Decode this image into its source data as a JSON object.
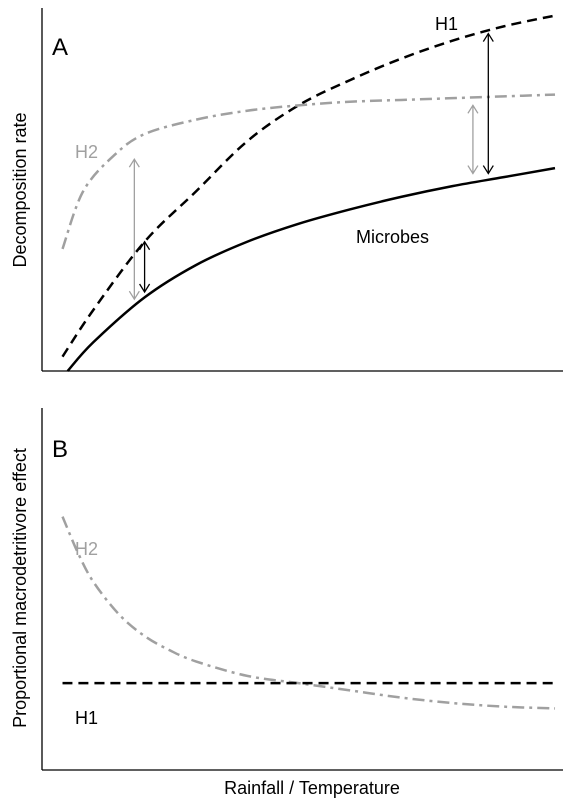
{
  "xlabel_shared": "Rainfall / Temperature",
  "colors": {
    "axis": "#000000",
    "h1": "#000000",
    "h2": "#a0a0a0",
    "microbes": "#000000"
  },
  "chart_data": [
    {
      "type": "line",
      "panel_label": "A",
      "xlabel": "",
      "ylabel": "Decomposition rate",
      "grid": false,
      "xlim": [
        0,
        10
      ],
      "ylim": [
        0,
        10
      ],
      "series": [
        {
          "name": "H1",
          "style": "dashed",
          "color": "#000000",
          "x": [
            0.4,
            1.0,
            2.0,
            3.0,
            4.0,
            5.0,
            6.0,
            7.0,
            8.0,
            9.0,
            10.0
          ],
          "y": [
            0.4,
            1.7,
            3.6,
            5.0,
            6.4,
            7.4,
            8.1,
            8.7,
            9.2,
            9.6,
            9.9
          ]
        },
        {
          "name": "H2",
          "style": "dash-dot",
          "color": "#a0a0a0",
          "x": [
            0.4,
            0.8,
            1.4,
            2.0,
            3.0,
            4.0,
            5.0,
            6.0,
            7.0,
            8.0,
            9.0,
            10.0
          ],
          "y": [
            3.4,
            5.0,
            6.0,
            6.6,
            7.0,
            7.25,
            7.4,
            7.5,
            7.55,
            7.6,
            7.65,
            7.7
          ]
        },
        {
          "name": "Microbes",
          "style": "solid",
          "color": "#000000",
          "x": [
            0.5,
            1.0,
            2.0,
            3.0,
            4.0,
            5.0,
            6.0,
            7.0,
            8.0,
            9.0,
            10.0
          ],
          "y": [
            0.0,
            0.8,
            2.05,
            2.95,
            3.6,
            4.1,
            4.5,
            4.85,
            5.15,
            5.4,
            5.65
          ]
        }
      ],
      "annotations": [
        {
          "kind": "double-arrow",
          "color": "#a0a0a0",
          "x": 1.8,
          "y_from": 2.0,
          "y_to": 5.9
        },
        {
          "kind": "double-arrow",
          "color": "#000000",
          "x": 2.0,
          "y_from": 2.2,
          "y_to": 3.6
        },
        {
          "kind": "double-arrow",
          "color": "#a0a0a0",
          "x": 8.4,
          "y_from": 5.5,
          "y_to": 7.4
        },
        {
          "kind": "double-arrow",
          "color": "#000000",
          "x": 8.7,
          "y_from": 5.5,
          "y_to": 9.4
        }
      ]
    },
    {
      "type": "line",
      "panel_label": "B",
      "xlabel": "Rainfall / Temperature",
      "ylabel": "Proportional macrodetritivore effect",
      "grid": false,
      "xlim": [
        0,
        10
      ],
      "ylim": [
        0,
        10
      ],
      "series": [
        {
          "name": "H2",
          "style": "dash-dot",
          "color": "#a0a0a0",
          "x": [
            0.4,
            0.7,
            1.0,
            1.5,
            2.0,
            2.5,
            3.0,
            4.0,
            5.0,
            6.0,
            7.0,
            8.0,
            9.0,
            10.0
          ],
          "y": [
            7.0,
            6.0,
            5.2,
            4.3,
            3.7,
            3.3,
            3.0,
            2.6,
            2.4,
            2.2,
            2.0,
            1.85,
            1.75,
            1.7
          ]
        },
        {
          "name": "H1",
          "style": "dashed",
          "color": "#000000",
          "x": [
            0.4,
            10.0
          ],
          "y": [
            2.4,
            2.4
          ]
        }
      ]
    }
  ]
}
